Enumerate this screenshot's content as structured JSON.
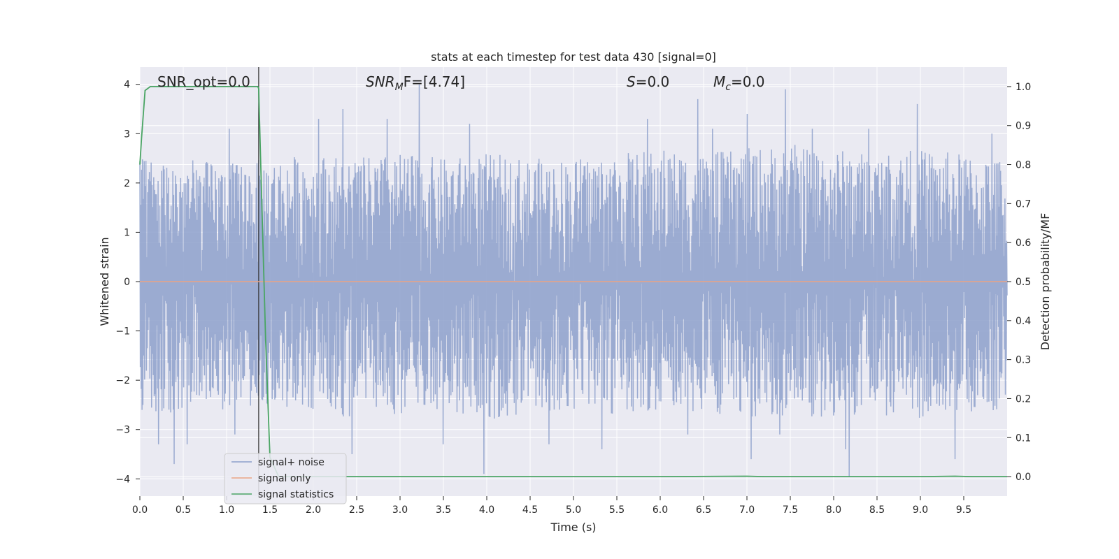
{
  "chart_data": {
    "type": "line",
    "title": "stats at each timestep for test data 430 [signal=0]",
    "xlabel": "Time (s)",
    "ylabel": "Whitened strain",
    "ylabel_right": "Detection probability/MF",
    "xlim": [
      0.0,
      10.0
    ],
    "ylim": [
      -4.35,
      4.35
    ],
    "ylim_right": [
      -0.05,
      1.05
    ],
    "x_ticks": [
      0.0,
      0.5,
      1.0,
      1.5,
      2.0,
      2.5,
      3.0,
      3.5,
      4.0,
      4.5,
      5.0,
      5.5,
      6.0,
      6.5,
      7.0,
      7.5,
      8.0,
      8.5,
      9.0,
      9.5
    ],
    "x_tick_labels": [
      "0.0",
      "0.5",
      "1.0",
      "1.5",
      "2.0",
      "2.5",
      "3.0",
      "3.5",
      "4.0",
      "4.5",
      "5.0",
      "5.5",
      "6.0",
      "6.5",
      "7.0",
      "7.5",
      "8.0",
      "8.5",
      "9.0",
      "9.5"
    ],
    "y_ticks": [
      4,
      3,
      2,
      1,
      0,
      -1,
      -2,
      -3,
      -4
    ],
    "y_tick_labels": [
      "4",
      "3",
      "2",
      "1",
      "0",
      "−1",
      "−2",
      "−3",
      "−4"
    ],
    "y_right_ticks": [
      1.0,
      0.9,
      0.8,
      0.7,
      0.6,
      0.5,
      0.4,
      0.3,
      0.2,
      0.1,
      0.0
    ],
    "y_right_tick_labels": [
      "1.0",
      "0.9",
      "0.8",
      "0.7",
      "0.6",
      "0.5",
      "0.4",
      "0.3",
      "0.2",
      "0.1",
      "0.0"
    ],
    "grid": true,
    "legend": {
      "position": "lower-left",
      "entries": [
        {
          "label": "signal+ noise",
          "color": "#8da0cb"
        },
        {
          "label": "signal only",
          "color": "#e9a385"
        },
        {
          "label": "signal statistics",
          "color": "#4aa564"
        }
      ]
    },
    "annotations": {
      "snr_opt": "SNR_opt=0.0",
      "snr_mf_sym": "SNR",
      "snr_mf_sub": "M",
      "snr_mf_rest": "F=[4.74]",
      "s_sym": "S",
      "s_rest": "=0.0",
      "mc_sym": "M",
      "mc_sub": "c",
      "mc_rest": "=0.0"
    },
    "noise_envelope": {
      "x": [
        0.0,
        0.5,
        1.0,
        1.5,
        2.0,
        2.5,
        3.0,
        3.5,
        4.0,
        4.5,
        5.0,
        5.5,
        6.0,
        6.5,
        7.0,
        7.5,
        8.0,
        8.5,
        9.0,
        9.5,
        10.0
      ],
      "upper": [
        2.5,
        2.5,
        2.4,
        2.5,
        2.6,
        2.5,
        2.6,
        2.5,
        2.6,
        2.5,
        2.5,
        2.6,
        2.7,
        2.6,
        2.7,
        2.8,
        2.7,
        2.6,
        2.7,
        2.6,
        2.5
      ],
      "lower": [
        -2.6,
        -2.7,
        -2.6,
        -2.5,
        -2.6,
        -2.8,
        -2.7,
        -2.6,
        -2.8,
        -2.7,
        -2.6,
        -2.7,
        -2.6,
        -2.7,
        -2.8,
        -2.7,
        -2.8,
        -2.7,
        -2.8,
        -2.7,
        -2.6
      ]
    },
    "noise_spikes": [
      {
        "x": 0.4,
        "y": -3.7
      },
      {
        "x": 0.22,
        "y": -3.3
      },
      {
        "x": 0.55,
        "y": -3.3
      },
      {
        "x": 1.1,
        "y": -3.1
      },
      {
        "x": 1.03,
        "y": 3.1
      },
      {
        "x": 2.06,
        "y": 3.3
      },
      {
        "x": 2.34,
        "y": 3.5
      },
      {
        "x": 2.85,
        "y": 3.3
      },
      {
        "x": 3.22,
        "y": 4.0
      },
      {
        "x": 2.45,
        "y": -3.5
      },
      {
        "x": 3.5,
        "y": -3.3
      },
      {
        "x": 3.97,
        "y": -3.9
      },
      {
        "x": 3.8,
        "y": 3.2
      },
      {
        "x": 4.72,
        "y": -3.3
      },
      {
        "x": 5.33,
        "y": -3.4
      },
      {
        "x": 5.85,
        "y": 3.3
      },
      {
        "x": 6.43,
        "y": 3.7
      },
      {
        "x": 6.6,
        "y": 3.1
      },
      {
        "x": 7.0,
        "y": 3.4
      },
      {
        "x": 7.44,
        "y": 3.9
      },
      {
        "x": 7.38,
        "y": -3.1
      },
      {
        "x": 7.05,
        "y": -3.6
      },
      {
        "x": 7.75,
        "y": 3.1
      },
      {
        "x": 8.14,
        "y": -3.4
      },
      {
        "x": 8.18,
        "y": -3.95
      },
      {
        "x": 8.96,
        "y": 3.6
      },
      {
        "x": 9.4,
        "y": -3.6
      },
      {
        "x": 9.82,
        "y": 3.0
      },
      {
        "x": 6.32,
        "y": -3.1
      },
      {
        "x": 8.4,
        "y": 3.1
      }
    ],
    "series": [
      {
        "name": "signal only",
        "x": [
          0.0,
          10.0
        ],
        "y": [
          0.0,
          0.0
        ]
      },
      {
        "name": "signal statistics",
        "x": [
          0.0,
          0.02,
          0.06,
          0.12,
          0.2,
          0.3,
          0.5,
          0.8,
          1.0,
          1.2,
          1.3,
          1.36,
          1.37,
          1.4,
          1.45,
          1.5,
          1.6,
          2.0,
          3.0,
          4.0,
          5.0,
          6.0,
          7.0,
          7.2,
          8.0,
          9.0,
          9.4,
          9.6,
          10.0
        ],
        "y": [
          0.8,
          0.87,
          0.99,
          1.0,
          1.0,
          1.0,
          1.0,
          1.0,
          1.0,
          1.0,
          1.0,
          1.0,
          0.995,
          0.75,
          0.35,
          0.05,
          0.0,
          0.0,
          0.0,
          0.0,
          0.0,
          0.0,
          0.001,
          0.0,
          0.0,
          0.0,
          0.001,
          0.0,
          0.0
        ],
        "axis": "right"
      }
    ],
    "vertical_line_x": 1.37
  }
}
